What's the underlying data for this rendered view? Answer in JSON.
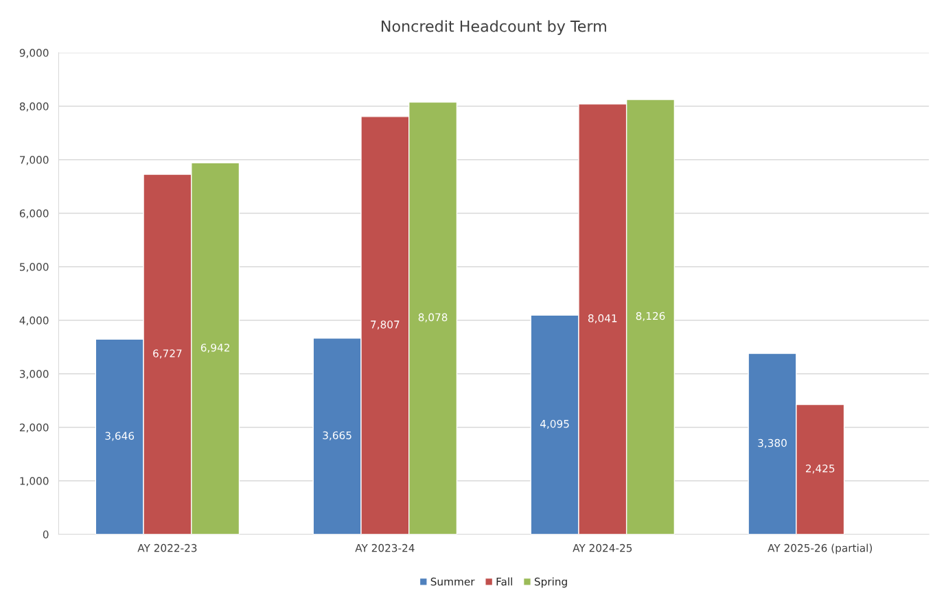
{
  "chart_data": {
    "type": "bar",
    "title": "Noncredit Headcount by Term",
    "categories": [
      "AY 2022-23",
      "AY 2023-24",
      "AY 2024-25",
      "AY 2025-26 (partial)"
    ],
    "series": [
      {
        "name": "Summer",
        "color": "#4f81bd",
        "values": [
          3646,
          3665,
          4095,
          3380
        ],
        "value_labels": [
          "3,646",
          "3,665",
          "4,095",
          "3,380"
        ]
      },
      {
        "name": "Fall",
        "color": "#c0504d",
        "values": [
          6727,
          7807,
          8041,
          2425
        ],
        "value_labels": [
          "6,727",
          "7,807",
          "8,041",
          "2,425"
        ]
      },
      {
        "name": "Spring",
        "color": "#9bbb59",
        "values": [
          6942,
          8078,
          8126,
          null
        ],
        "value_labels": [
          "6,942",
          "8,078",
          "8,126",
          null
        ]
      }
    ],
    "ylim": [
      0,
      9000
    ],
    "yticks": [
      0,
      {
        "value": 1000,
        "label": "1,000"
      },
      {
        "value": 2000,
        "label": "2,000"
      },
      {
        "value": 3000,
        "label": "3,000"
      },
      {
        "value": 4000,
        "label": "4,000"
      },
      {
        "value": 5000,
        "label": "5,000"
      },
      {
        "value": 6000,
        "label": "6,000"
      },
      {
        "value": 7000,
        "label": "7,000"
      },
      {
        "value": 8000,
        "label": "8,000"
      },
      {
        "value": 9000,
        "label": "9,000"
      }
    ],
    "grid": "y",
    "legend": "bottom"
  }
}
